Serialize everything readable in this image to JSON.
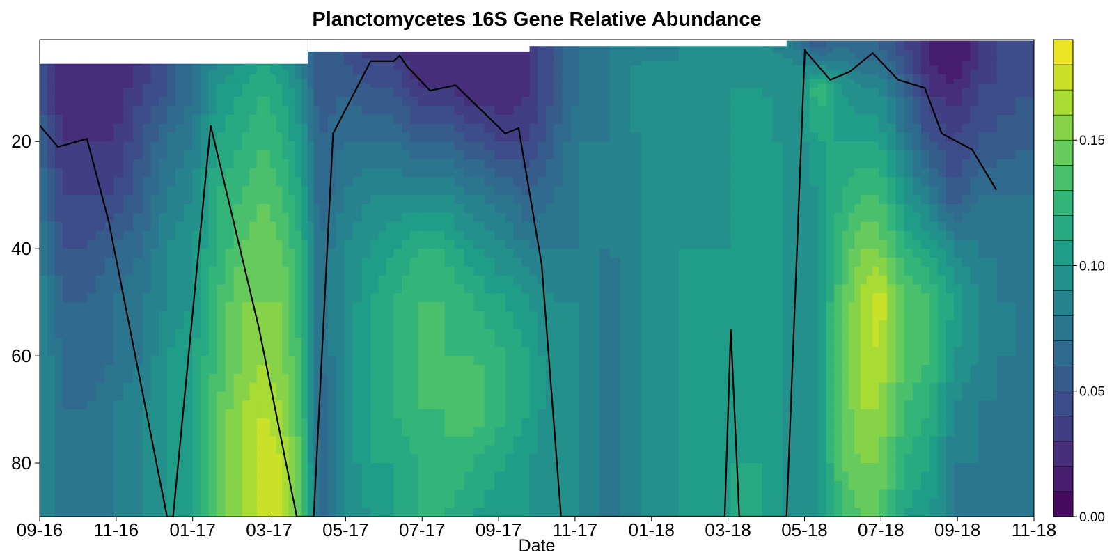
{
  "chart_data": {
    "type": "heatmap",
    "title": "Planctomycetes 16S Gene Relative Abundance",
    "xlabel": "Date",
    "ylabel": "",
    "x_ticks": [
      "09-16",
      "11-16",
      "01-17",
      "03-17",
      "05-17",
      "07-17",
      "09-17",
      "11-17",
      "01-18",
      "03-18",
      "05-18",
      "07-18",
      "09-18",
      "11-18"
    ],
    "x_range": [
      "2016-09-01",
      "2018-11-30"
    ],
    "y_ticks": [
      20,
      40,
      60,
      80
    ],
    "y_range": [
      1,
      90
    ],
    "y_reversed": true,
    "colorbar": {
      "ticks": [
        "0.00",
        "0.05",
        "0.10",
        "0.15"
      ],
      "range": [
        0,
        0.19
      ],
      "levels": 19,
      "colormap": [
        "#440154",
        "#482878",
        "#3e4989",
        "#31688e",
        "#26828e",
        "#1f9e89",
        "#35b779",
        "#6ece58",
        "#b5de2b",
        "#fde725"
      ]
    },
    "mixed_layer_depth": {
      "color": "#000000",
      "x": [
        "2016-09-01",
        "2016-09-16",
        "2016-10-10",
        "2016-10-28",
        "2016-12-15",
        "2016-12-20",
        "2017-01-20",
        "2017-03-01",
        "2017-04-01",
        "2017-04-15",
        "2017-05-01",
        "2017-06-01",
        "2017-06-20",
        "2017-06-25",
        "2017-07-01",
        "2017-07-20",
        "2017-08-10",
        "2017-09-20",
        "2017-10-01",
        "2017-10-20",
        "2017-11-05",
        "2017-12-10",
        "2018-03-20",
        "2018-03-25",
        "2018-04-01",
        "2018-05-10",
        "2018-05-25",
        "2018-06-15",
        "2018-07-01",
        "2018-07-20",
        "2018-08-10",
        "2018-09-01",
        "2018-09-15",
        "2018-10-10",
        "2018-10-30"
      ],
      "y": [
        17,
        21,
        19.5,
        35,
        90,
        90,
        17,
        55,
        90,
        90,
        18.5,
        5,
        5,
        4,
        6,
        10.5,
        9.5,
        18.5,
        17.5,
        43,
        90,
        90,
        90,
        55,
        90,
        90,
        3,
        8.5,
        7,
        3.5,
        8.5,
        10,
        18.5,
        21.5,
        29
      ]
    },
    "data_columns": {
      "x": [
        "2016-09-01",
        "2016-09-20",
        "2016-10-10",
        "2016-11-01",
        "2016-11-25",
        "2016-12-15",
        "2017-01-05",
        "2017-01-25",
        "2017-02-15",
        "2017-03-05",
        "2017-03-20",
        "2017-04-05",
        "2017-04-20",
        "2017-05-10",
        "2017-06-01",
        "2017-06-20",
        "2017-07-10",
        "2017-08-01",
        "2017-08-25",
        "2017-09-20",
        "2017-10-10",
        "2017-10-30",
        "2017-11-20",
        "2017-12-15",
        "2018-01-10",
        "2018-02-10",
        "2018-03-05",
        "2018-03-25",
        "2018-04-20",
        "2018-05-15",
        "2018-06-05",
        "2018-06-25",
        "2018-07-10",
        "2018-07-25",
        "2018-08-15",
        "2018-09-05",
        "2018-09-25",
        "2018-10-15",
        "2018-11-30"
      ],
      "depths": [
        2,
        5,
        10,
        20,
        30,
        40,
        50,
        60,
        70,
        80,
        90
      ],
      "values": [
        [
          0.05,
          0.05,
          0.05,
          0.06,
          0.07,
          0.08,
          0.09,
          0.09,
          0.09,
          0.09,
          0.09
        ],
        [
          0.02,
          0.02,
          0.02,
          0.03,
          0.04,
          0.05,
          0.06,
          0.07,
          0.07,
          0.07,
          0.07
        ],
        [
          0.02,
          0.02,
          0.02,
          0.03,
          0.04,
          0.05,
          0.06,
          0.06,
          0.07,
          0.07,
          0.07
        ],
        [
          0.02,
          0.02,
          0.02,
          0.03,
          0.04,
          0.06,
          0.07,
          0.07,
          0.08,
          0.08,
          0.08
        ],
        [
          0.03,
          0.03,
          0.04,
          0.05,
          0.06,
          0.07,
          0.08,
          0.08,
          0.09,
          0.09,
          0.09
        ],
        [
          0.04,
          0.05,
          0.05,
          0.07,
          0.08,
          0.09,
          0.09,
          0.1,
          0.1,
          0.1,
          0.1
        ],
        [
          0.06,
          0.07,
          0.07,
          0.08,
          0.09,
          0.1,
          0.1,
          0.11,
          0.11,
          0.11,
          0.11
        ],
        [
          0.08,
          0.09,
          0.1,
          0.11,
          0.12,
          0.12,
          0.13,
          0.13,
          0.14,
          0.14,
          0.14
        ],
        [
          0.09,
          0.1,
          0.11,
          0.12,
          0.13,
          0.14,
          0.15,
          0.15,
          0.16,
          0.16,
          0.16
        ],
        [
          0.1,
          0.11,
          0.12,
          0.13,
          0.14,
          0.15,
          0.15,
          0.16,
          0.17,
          0.18,
          0.18
        ],
        [
          0.09,
          0.1,
          0.11,
          0.12,
          0.13,
          0.14,
          0.15,
          0.15,
          0.16,
          0.17,
          0.17
        ],
        [
          0.08,
          0.08,
          0.09,
          0.1,
          0.11,
          0.12,
          0.12,
          0.13,
          0.13,
          0.14,
          0.14
        ],
        [
          0.05,
          0.05,
          0.05,
          0.06,
          0.06,
          0.07,
          0.07,
          0.07,
          0.06,
          0.06,
          0.06
        ],
        [
          0.05,
          0.05,
          0.06,
          0.07,
          0.08,
          0.09,
          0.09,
          0.09,
          0.09,
          0.09,
          0.09
        ],
        [
          0.03,
          0.04,
          0.05,
          0.07,
          0.09,
          0.1,
          0.11,
          0.11,
          0.11,
          0.11,
          0.1
        ],
        [
          0.03,
          0.04,
          0.05,
          0.07,
          0.09,
          0.11,
          0.12,
          0.12,
          0.12,
          0.11,
          0.11
        ],
        [
          0.02,
          0.02,
          0.03,
          0.06,
          0.09,
          0.12,
          0.13,
          0.13,
          0.13,
          0.12,
          0.12
        ],
        [
          0.02,
          0.02,
          0.03,
          0.06,
          0.09,
          0.12,
          0.13,
          0.13,
          0.13,
          0.13,
          0.12
        ],
        [
          0.02,
          0.02,
          0.02,
          0.05,
          0.08,
          0.1,
          0.12,
          0.13,
          0.14,
          0.12,
          0.11
        ],
        [
          0.02,
          0.02,
          0.02,
          0.04,
          0.07,
          0.09,
          0.11,
          0.12,
          0.12,
          0.11,
          0.1
        ],
        [
          0.03,
          0.03,
          0.03,
          0.04,
          0.06,
          0.08,
          0.1,
          0.11,
          0.11,
          0.1,
          0.1
        ],
        [
          0.05,
          0.05,
          0.05,
          0.06,
          0.07,
          0.08,
          0.09,
          0.09,
          0.09,
          0.09,
          0.09
        ],
        [
          0.07,
          0.07,
          0.07,
          0.08,
          0.08,
          0.08,
          0.09,
          0.09,
          0.09,
          0.09,
          0.09
        ],
        [
          0.08,
          0.08,
          0.08,
          0.08,
          0.08,
          0.08,
          0.07,
          0.07,
          0.07,
          0.07,
          0.07
        ],
        [
          0.08,
          0.09,
          0.1,
          0.09,
          0.09,
          0.09,
          0.09,
          0.09,
          0.09,
          0.09,
          0.09
        ],
        [
          0.09,
          0.09,
          0.1,
          0.1,
          0.1,
          0.1,
          0.1,
          0.1,
          0.1,
          0.1,
          0.1
        ],
        [
          0.09,
          0.09,
          0.09,
          0.09,
          0.09,
          0.1,
          0.1,
          0.1,
          0.1,
          0.1,
          0.1
        ],
        [
          0.09,
          0.09,
          0.1,
          0.1,
          0.1,
          0.1,
          0.1,
          0.1,
          0.1,
          0.11,
          0.11
        ],
        [
          0.09,
          0.1,
          0.1,
          0.11,
          0.11,
          0.11,
          0.11,
          0.11,
          0.11,
          0.11,
          0.11
        ],
        [
          0.08,
          0.09,
          0.09,
          0.09,
          0.09,
          0.09,
          0.09,
          0.09,
          0.09,
          0.09,
          0.09
        ],
        [
          0.05,
          0.08,
          0.13,
          0.11,
          0.1,
          0.1,
          0.1,
          0.1,
          0.1,
          0.1,
          0.1
        ],
        [
          0.07,
          0.08,
          0.1,
          0.11,
          0.12,
          0.13,
          0.14,
          0.14,
          0.14,
          0.14,
          0.13
        ],
        [
          0.06,
          0.07,
          0.09,
          0.11,
          0.13,
          0.15,
          0.16,
          0.16,
          0.16,
          0.15,
          0.14
        ],
        [
          0.06,
          0.07,
          0.09,
          0.11,
          0.13,
          0.15,
          0.18,
          0.17,
          0.16,
          0.15,
          0.14
        ],
        [
          0.04,
          0.05,
          0.06,
          0.08,
          0.1,
          0.12,
          0.14,
          0.14,
          0.13,
          0.12,
          0.11
        ],
        [
          0.02,
          0.02,
          0.03,
          0.05,
          0.08,
          0.11,
          0.13,
          0.13,
          0.12,
          0.11,
          0.1
        ],
        [
          0.01,
          0.01,
          0.02,
          0.04,
          0.05,
          0.09,
          0.11,
          0.1,
          0.09,
          0.08,
          0.08
        ],
        [
          0.03,
          0.03,
          0.04,
          0.05,
          0.07,
          0.08,
          0.09,
          0.09,
          0.08,
          0.08,
          0.07
        ],
        [
          0.05,
          0.05,
          0.05,
          0.06,
          0.07,
          0.07,
          0.07,
          0.07,
          0.07,
          0.07,
          0.07
        ]
      ]
    }
  }
}
